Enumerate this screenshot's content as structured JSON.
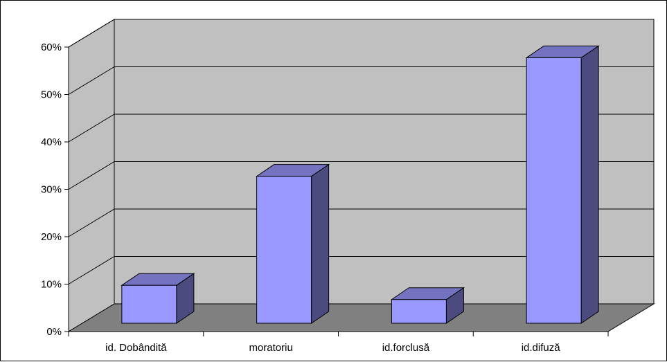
{
  "chart_data": {
    "type": "bar",
    "style": "3d-column",
    "categories": [
      "id. Dobândită",
      "moratoriu",
      "id.forclusă",
      "id.difuză"
    ],
    "values": [
      8,
      31,
      5,
      56
    ],
    "ylim": [
      0,
      60
    ],
    "yticks": [
      "0%",
      "10%",
      "20%",
      "30%",
      "40%",
      "50%",
      "60%"
    ],
    "grid": true,
    "legend": "none",
    "colors": {
      "bar_front": "#9999ff",
      "bar_side": "#4b4b7f",
      "bar_top": "#7373c0",
      "wall": "#c0c0c0",
      "floor": "#808080",
      "gridline": "#000000"
    }
  }
}
